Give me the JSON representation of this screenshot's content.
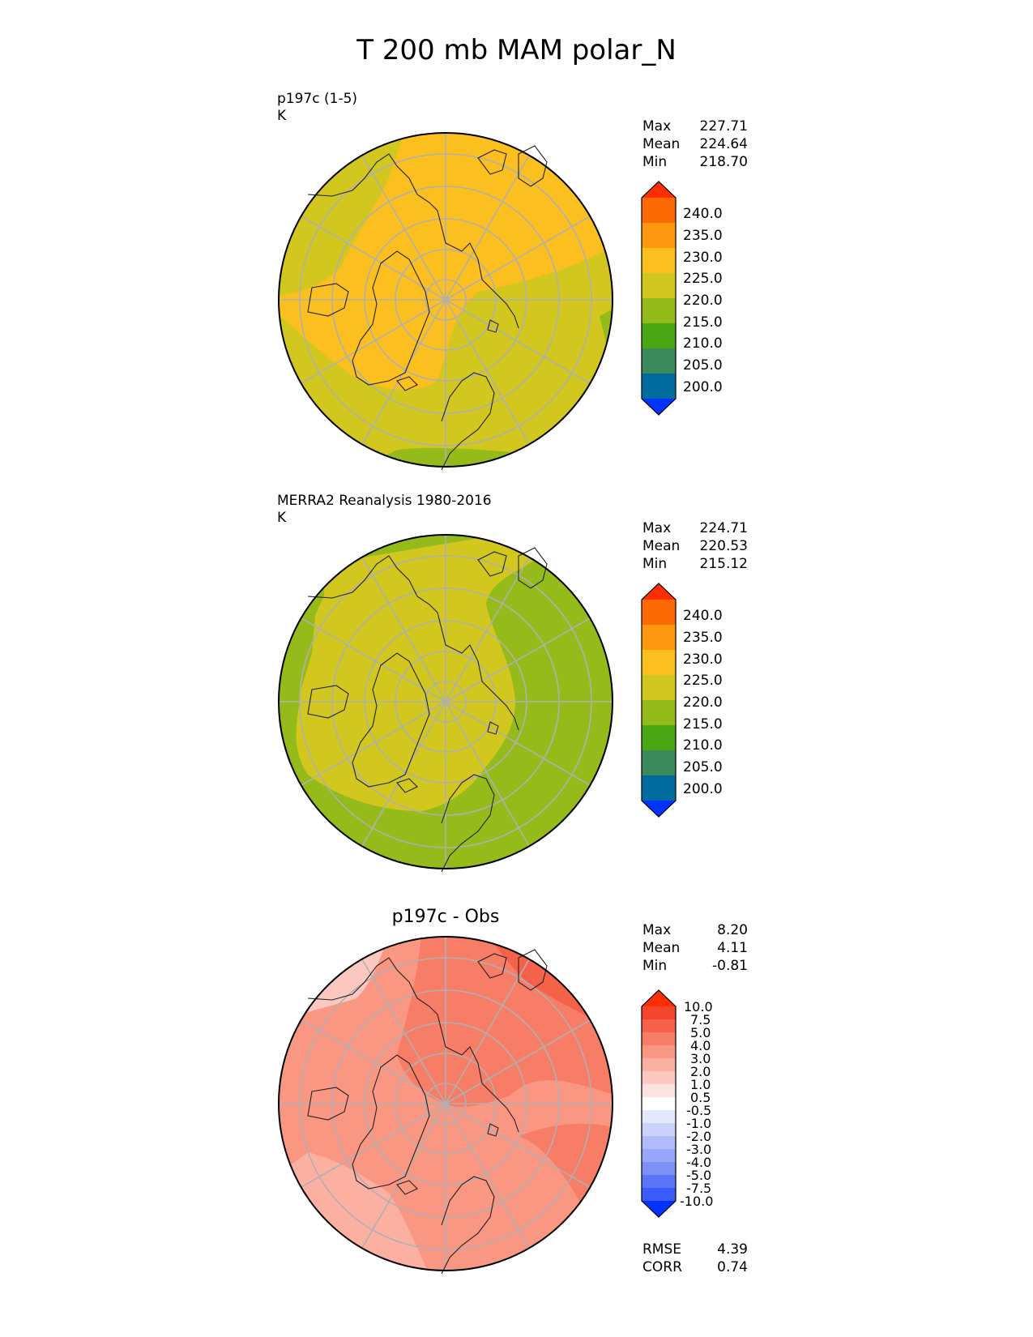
{
  "title": "T 200 mb MAM polar_N",
  "panels": [
    {
      "label_line1": "p197c (1-5)",
      "label_line2": "K",
      "stats": [
        {
          "key": "Max",
          "value": "227.71"
        },
        {
          "key": "Mean",
          "value": "224.64"
        },
        {
          "key": "Min",
          "value": "218.70"
        }
      ],
      "colorbar": {
        "ticks": [
          "240.0",
          "235.0",
          "230.0",
          "225.0",
          "220.0",
          "215.0",
          "210.0",
          "205.0",
          "200.0"
        ],
        "colors": [
          "#0033ff",
          "#006b9c",
          "#3a8a5c",
          "#4aa612",
          "#95bb1a",
          "#d1c71e",
          "#fbbf1f",
          "#fd9810",
          "#fd6a05",
          "#fd2e04"
        ],
        "over_color": "#fd2e04",
        "under_color": "#0033ff"
      }
    },
    {
      "label_line1": "MERRA2 Reanalysis 1980-2016",
      "label_line2": "K",
      "stats": [
        {
          "key": "Max",
          "value": "224.71"
        },
        {
          "key": "Mean",
          "value": "220.53"
        },
        {
          "key": "Min",
          "value": "215.12"
        }
      ],
      "colorbar": {
        "ticks": [
          "240.0",
          "235.0",
          "230.0",
          "225.0",
          "220.0",
          "215.0",
          "210.0",
          "205.0",
          "200.0"
        ],
        "colors": [
          "#0033ff",
          "#006b9c",
          "#3a8a5c",
          "#4aa612",
          "#95bb1a",
          "#d1c71e",
          "#fbbf1f",
          "#fd9810",
          "#fd6a05",
          "#fd2e04"
        ],
        "over_color": "#fd2e04",
        "under_color": "#0033ff"
      }
    },
    {
      "title": "p197c - Obs",
      "stats": [
        {
          "key": "Max",
          "value": "8.20"
        },
        {
          "key": "Mean",
          "value": "4.11"
        },
        {
          "key": "Min",
          "value": "-0.81"
        }
      ],
      "colorbar": {
        "ticks": [
          "10.0",
          "7.5",
          "5.0",
          "4.0",
          "3.0",
          "2.0",
          "1.0",
          "0.5",
          "-0.5",
          "-1.0",
          "-2.0",
          "-3.0",
          "-4.0",
          "-5.0",
          "-7.5",
          "-10.0"
        ],
        "colors": [
          "#1a45ff",
          "#3a5cfb",
          "#5a75f8",
          "#7c90f8",
          "#97a7f9",
          "#b1bdfa",
          "#cbd3fb",
          "#e4e8fd",
          "#ffffff",
          "#fde3e0",
          "#fcc8c0",
          "#fbb0a2",
          "#f99783",
          "#f87d66",
          "#f66249",
          "#f4452a",
          "#fd2e04"
        ],
        "over_color": "#fd2e04",
        "under_color": "#0033ff"
      },
      "metrics": [
        {
          "key": "RMSE",
          "value": "4.39"
        },
        {
          "key": "CORR",
          "value": "0.74"
        }
      ]
    }
  ],
  "chart_data": [
    {
      "type": "heatmap",
      "title": "p197c (1-5)",
      "units": "K",
      "projection": "north polar stereographic",
      "max": 227.71,
      "mean": 224.64,
      "min": 218.7,
      "levels": [
        200,
        205,
        210,
        215,
        220,
        225,
        230,
        235,
        240
      ]
    },
    {
      "type": "heatmap",
      "title": "MERRA2 Reanalysis 1980-2016",
      "units": "K",
      "projection": "north polar stereographic",
      "max": 224.71,
      "mean": 220.53,
      "min": 215.12,
      "levels": [
        200,
        205,
        210,
        215,
        220,
        225,
        230,
        235,
        240
      ]
    },
    {
      "type": "heatmap",
      "title": "p197c - Obs",
      "projection": "north polar stereographic",
      "max": 8.2,
      "mean": 4.11,
      "min": -0.81,
      "levels": [
        -10,
        -7.5,
        -5,
        -4,
        -3,
        -2,
        -1,
        -0.5,
        0.5,
        1,
        2,
        3,
        4,
        5,
        7.5,
        10
      ],
      "rmse": 4.39,
      "corr": 0.74
    }
  ]
}
